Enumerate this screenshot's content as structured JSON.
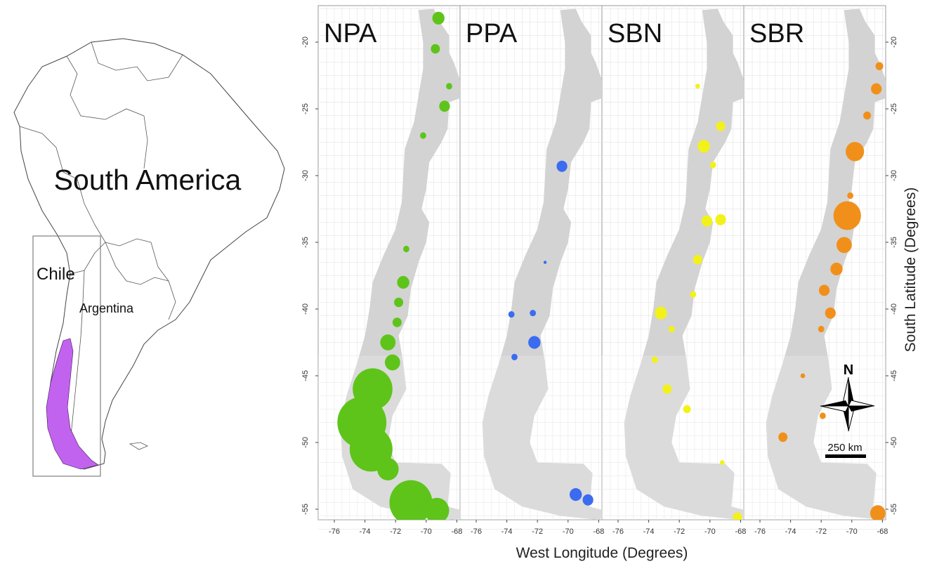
{
  "inset_map": {
    "continent_label": "South America",
    "country_labels": {
      "chile": "Chile",
      "argentina": "Argentina"
    },
    "highlight_color": "#c263f0"
  },
  "panels": [
    {
      "id": "npa",
      "label": "NPA",
      "color": "#5ec41a"
    },
    {
      "id": "ppa",
      "label": "PPA",
      "color": "#3b6bf0"
    },
    {
      "id": "sbn",
      "label": "SBN",
      "color": "#f2f21a"
    },
    {
      "id": "sbr",
      "label": "SBR",
      "color": "#f0901a"
    }
  ],
  "axes": {
    "x_title": "West Longitude (Degrees)",
    "y_title": "South Latitude (Degrees)",
    "x_ticks": [
      "-76",
      "-74",
      "-72",
      "-70",
      "-68"
    ],
    "y_ticks": [
      "-20",
      "-25",
      "-30",
      "-35",
      "-40",
      "-45",
      "-50",
      "-55"
    ]
  },
  "map_colors": {
    "country_fill": "#d3d3d3",
    "grid": "#e8e8e8"
  },
  "compass": {
    "label": "N"
  },
  "scale_bar": {
    "label": "250 km"
  }
}
